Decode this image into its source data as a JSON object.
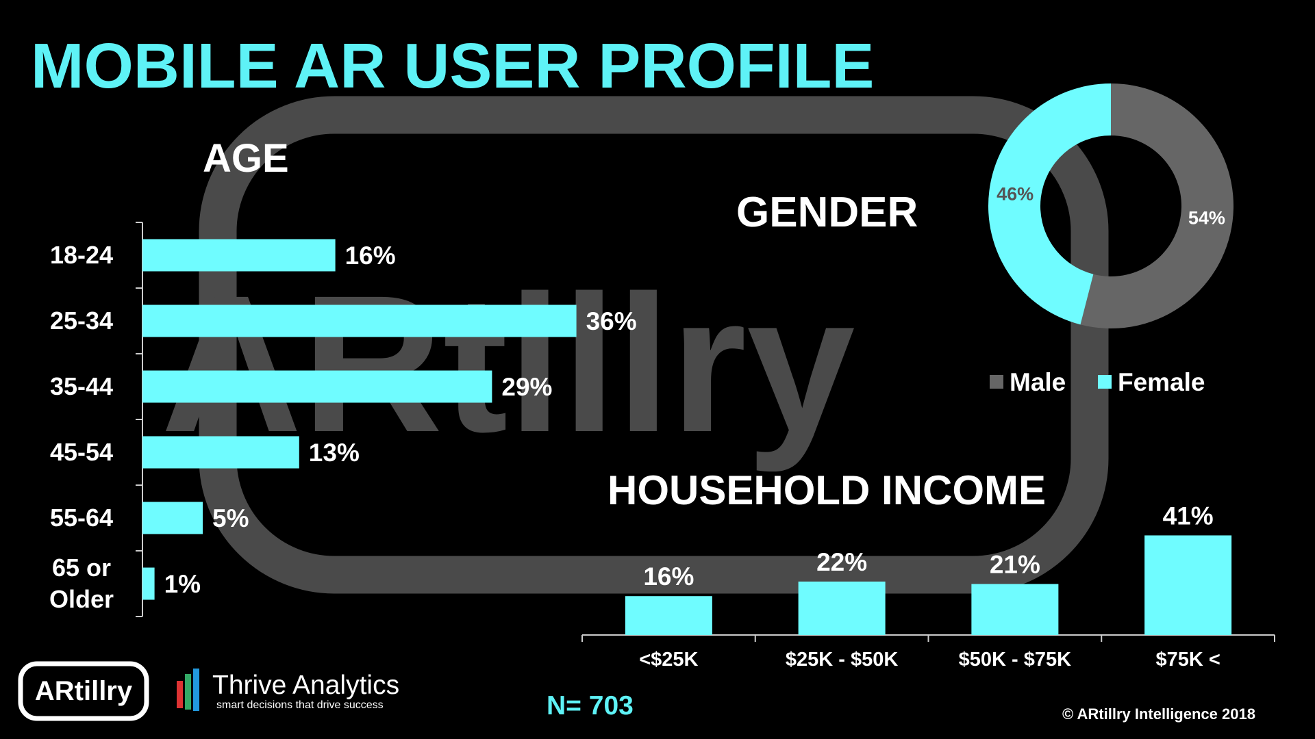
{
  "title": "MOBILE AR USER PROFILE",
  "watermark": "ARtillry",
  "footer": {
    "logo_text": "ARtillry",
    "partner": "Thrive Analytics",
    "partner_tagline": "smart decisions that drive success",
    "sample_size": "N= 703",
    "copyright": "© ARtillry Intelligence 2018"
  },
  "chart_data": [
    {
      "type": "bar",
      "orientation": "horizontal",
      "title": "AGE",
      "categories": [
        "18-24",
        "25-34",
        "35-44",
        "45-54",
        "55-64",
        "65 or Older"
      ],
      "values": [
        16,
        36,
        29,
        13,
        5,
        1
      ],
      "value_labels": [
        "16%",
        "36%",
        "29%",
        "13%",
        "5%",
        "1%"
      ],
      "color": "#6ffcff"
    },
    {
      "type": "pie",
      "title": "GENDER",
      "categories": [
        "Male",
        "Female"
      ],
      "values": [
        54,
        46
      ],
      "value_labels": [
        "54%",
        "46%"
      ],
      "colors": [
        "#666666",
        "#6ffcff"
      ],
      "legend": "right"
    },
    {
      "type": "bar",
      "orientation": "vertical",
      "title": "HOUSEHOLD INCOME",
      "categories": [
        "<$25K",
        "$25K - $50K",
        "$50K - $75K",
        "$75K <"
      ],
      "values": [
        16,
        22,
        21,
        41
      ],
      "value_labels": [
        "16%",
        "22%",
        "21%",
        "41%"
      ],
      "color": "#6ffcff"
    }
  ]
}
